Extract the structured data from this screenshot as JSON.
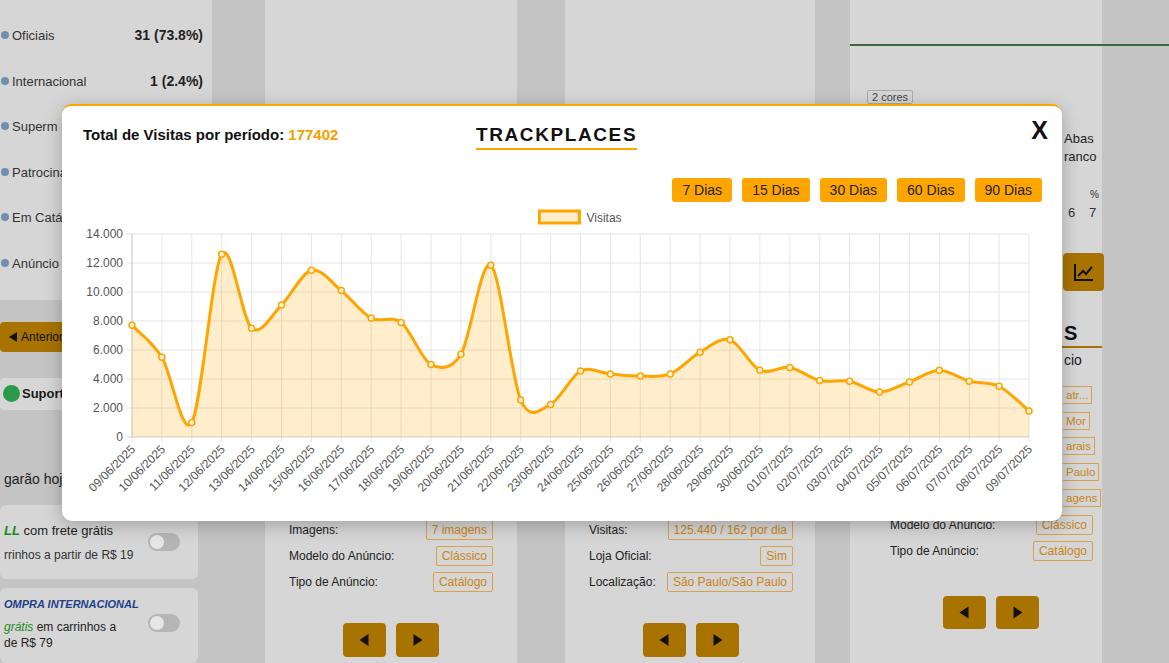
{
  "chart_data": {
    "type": "area",
    "categories": [
      "09/06/2025",
      "10/06/2025",
      "11/06/2025",
      "12/06/2025",
      "13/06/2025",
      "14/06/2025",
      "15/06/2025",
      "16/06/2025",
      "17/06/2025",
      "18/06/2025",
      "19/06/2025",
      "20/06/2025",
      "21/06/2025",
      "22/06/2025",
      "23/06/2025",
      "24/06/2025",
      "25/06/2025",
      "26/06/2025",
      "27/06/2025",
      "28/06/2025",
      "29/06/2025",
      "30/06/2025",
      "01/07/2025",
      "02/07/2025",
      "03/07/2025",
      "04/07/2025",
      "05/07/2025",
      "06/07/2025",
      "07/07/2025",
      "08/07/2025",
      "09/07/2025"
    ],
    "series": [
      {
        "name": "Visitas",
        "color": "#ffa500",
        "marker": "circle",
        "values": [
          7700,
          5500,
          1000,
          12600,
          7500,
          9100,
          11500,
          10100,
          8200,
          7900,
          5000,
          5700,
          11850,
          2550,
          2250,
          4550,
          4350,
          4200,
          4350,
          5850,
          6700,
          4600,
          4800,
          3900,
          3850,
          3100,
          3800,
          4600,
          3850,
          3500,
          1800
        ]
      }
    ],
    "ylim": [
      0,
      14000
    ],
    "yticks": [
      0,
      {
        "value": 2000,
        "label": "2.000"
      },
      {
        "value": 4000,
        "label": "4.000"
      },
      {
        "value": 6000,
        "label": "6.000"
      },
      {
        "value": 8000,
        "label": "8.000"
      },
      {
        "value": 10000,
        "label": "10.000"
      },
      {
        "value": 12000,
        "label": "12.000"
      },
      {
        "value": 14000,
        "label": "14.000"
      }
    ],
    "grid": true,
    "legend": "top"
  },
  "modal": {
    "title": "Total de Visitas por período:",
    "total": 177402,
    "brand": "TRACKPLACES",
    "close": "X",
    "periods": [
      "7 Dias",
      "15 Dias",
      "30 Dias",
      "60 Dias",
      "90 Dias"
    ]
  },
  "background": {
    "sidebar": [
      {
        "label": "Oficiais",
        "value": "31 (73.8%)"
      },
      {
        "label": "Internacional",
        "value": "1 (2.4%)"
      },
      {
        "label": "Superm"
      },
      {
        "label": "Patrocina"
      },
      {
        "label": "Em Catá"
      },
      {
        "label": "Anúncio"
      }
    ],
    "previous": "Anterior",
    "support": "Suport",
    "delivery": "garão hoje",
    "free_shipping": {
      "badge": "LL",
      "text": "com frete grátis",
      "detail": "rrinhos a partir de R$ 19"
    },
    "international": {
      "title": "OMPRA INTERNACIONAL",
      "badge": "grátis",
      "text": "em carrinhos a",
      "detail": "de R$ 79"
    },
    "cards": [
      {
        "fields": [
          {
            "label": "Imagens:",
            "value": "7 imagens"
          },
          {
            "label": "Modelo do Anúncio:",
            "value": "Clássico"
          },
          {
            "label": "Tipo de Anúncio:",
            "value": "Catálogo"
          }
        ]
      },
      {
        "fields": [
          {
            "label": "Visitas:",
            "value": "125.440 / 162 por dia"
          },
          {
            "label": "Loja Oficial:",
            "value": "Sim"
          },
          {
            "label": "Localização:",
            "value": "São Paulo/São Paulo"
          }
        ]
      },
      {
        "tag": "2 cores",
        "title": [
          "Abas",
          "ranco"
        ],
        "stats": [
          {
            "value": "6"
          },
          {
            "icon": "%",
            "value": "7"
          }
        ],
        "heading": "S",
        "subheading": "cio",
        "tags": [
          "atr...",
          "Mor",
          "arais",
          "Paulo",
          "agens"
        ],
        "fields": [
          {
            "label": "Modelo do Anúncio:",
            "value": "Clássico"
          },
          {
            "label": "Tipo de Anúncio:",
            "value": "Catálogo"
          }
        ]
      }
    ]
  }
}
